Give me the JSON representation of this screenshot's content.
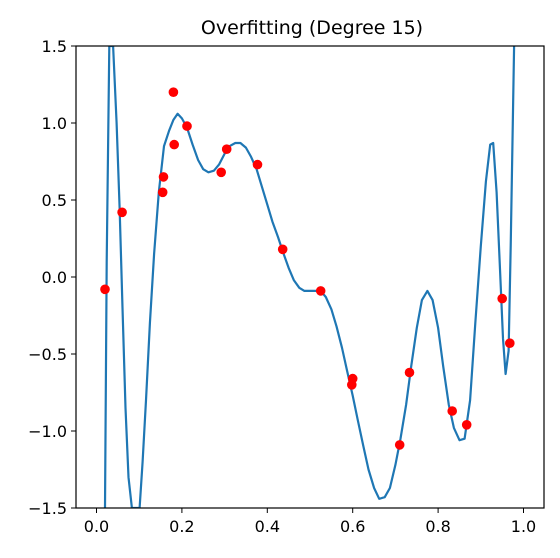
{
  "chart_data": {
    "type": "scatter",
    "title": "Overfitting (Degree 15)",
    "xlabel": "",
    "ylabel": "",
    "xlim": [
      -0.048,
      1.048
    ],
    "ylim": [
      -1.5,
      1.5
    ],
    "grid": false,
    "x_ticks": [
      0.0,
      0.2,
      0.4,
      0.6,
      0.8,
      1.0
    ],
    "x_tick_labels": [
      "0.0",
      "0.2",
      "0.4",
      "0.6",
      "0.8",
      "1.0"
    ],
    "y_ticks": [
      -1.5,
      -1.0,
      -0.5,
      0.0,
      0.5,
      1.0,
      1.5
    ],
    "y_tick_labels": [
      "−1.5",
      "−1.0",
      "−0.5",
      "0.0",
      "0.5",
      "1.0",
      "1.5"
    ],
    "colors": {
      "points": "#ff0000",
      "curve": "#1f77b4"
    },
    "points": [
      {
        "x": 0.02,
        "y": -0.08
      },
      {
        "x": 0.06,
        "y": 0.42
      },
      {
        "x": 0.155,
        "y": 0.55
      },
      {
        "x": 0.157,
        "y": 0.65
      },
      {
        "x": 0.18,
        "y": 1.2
      },
      {
        "x": 0.182,
        "y": 0.86
      },
      {
        "x": 0.212,
        "y": 0.98
      },
      {
        "x": 0.292,
        "y": 0.68
      },
      {
        "x": 0.305,
        "y": 0.83
      },
      {
        "x": 0.377,
        "y": 0.73
      },
      {
        "x": 0.436,
        "y": 0.18
      },
      {
        "x": 0.525,
        "y": -0.09
      },
      {
        "x": 0.598,
        "y": -0.7
      },
      {
        "x": 0.6,
        "y": -0.66
      },
      {
        "x": 0.71,
        "y": -1.09
      },
      {
        "x": 0.733,
        "y": -0.62
      },
      {
        "x": 0.833,
        "y": -0.87
      },
      {
        "x": 0.867,
        "y": -0.96
      },
      {
        "x": 0.95,
        "y": -0.14
      },
      {
        "x": 0.968,
        "y": -0.43
      }
    ],
    "curve": [
      [
        0.02,
        -1.5
      ],
      [
        0.024,
        0.1
      ],
      [
        0.03,
        1.5
      ],
      [
        0.039,
        1.5
      ],
      [
        0.047,
        1.0
      ],
      [
        0.054,
        0.45
      ],
      [
        0.061,
        -0.2
      ],
      [
        0.068,
        -0.85
      ],
      [
        0.075,
        -1.3
      ],
      [
        0.083,
        -1.5
      ],
      [
        0.101,
        -1.5
      ],
      [
        0.108,
        -1.2
      ],
      [
        0.116,
        -0.8
      ],
      [
        0.125,
        -0.3
      ],
      [
        0.135,
        0.15
      ],
      [
        0.146,
        0.55
      ],
      [
        0.158,
        0.85
      ],
      [
        0.17,
        0.95
      ],
      [
        0.18,
        1.02
      ],
      [
        0.19,
        1.06
      ],
      [
        0.2,
        1.03
      ],
      [
        0.212,
        0.97
      ],
      [
        0.225,
        0.86
      ],
      [
        0.238,
        0.76
      ],
      [
        0.25,
        0.7
      ],
      [
        0.262,
        0.68
      ],
      [
        0.275,
        0.69
      ],
      [
        0.287,
        0.73
      ],
      [
        0.3,
        0.8
      ],
      [
        0.312,
        0.85
      ],
      [
        0.325,
        0.87
      ],
      [
        0.337,
        0.87
      ],
      [
        0.35,
        0.84
      ],
      [
        0.362,
        0.78
      ],
      [
        0.375,
        0.7
      ],
      [
        0.387,
        0.59
      ],
      [
        0.4,
        0.47
      ],
      [
        0.412,
        0.36
      ],
      [
        0.425,
        0.26
      ],
      [
        0.437,
        0.16
      ],
      [
        0.45,
        0.06
      ],
      [
        0.462,
        -0.02
      ],
      [
        0.475,
        -0.07
      ],
      [
        0.487,
        -0.09
      ],
      [
        0.5,
        -0.09
      ],
      [
        0.512,
        -0.09
      ],
      [
        0.525,
        -0.09
      ],
      [
        0.537,
        -0.13
      ],
      [
        0.55,
        -0.21
      ],
      [
        0.562,
        -0.32
      ],
      [
        0.575,
        -0.46
      ],
      [
        0.587,
        -0.61
      ],
      [
        0.6,
        -0.77
      ],
      [
        0.612,
        -0.93
      ],
      [
        0.625,
        -1.1
      ],
      [
        0.637,
        -1.25
      ],
      [
        0.65,
        -1.37
      ],
      [
        0.662,
        -1.44
      ],
      [
        0.675,
        -1.43
      ],
      [
        0.687,
        -1.37
      ],
      [
        0.7,
        -1.22
      ],
      [
        0.712,
        -1.05
      ],
      [
        0.725,
        -0.83
      ],
      [
        0.737,
        -0.58
      ],
      [
        0.75,
        -0.33
      ],
      [
        0.762,
        -0.15
      ],
      [
        0.775,
        -0.09
      ],
      [
        0.787,
        -0.15
      ],
      [
        0.8,
        -0.33
      ],
      [
        0.812,
        -0.58
      ],
      [
        0.825,
        -0.83
      ],
      [
        0.837,
        -0.98
      ],
      [
        0.85,
        -1.06
      ],
      [
        0.862,
        -1.05
      ],
      [
        0.875,
        -0.8
      ],
      [
        0.887,
        -0.3
      ],
      [
        0.9,
        0.2
      ],
      [
        0.912,
        0.62
      ],
      [
        0.922,
        0.86
      ],
      [
        0.929,
        0.87
      ],
      [
        0.937,
        0.55
      ],
      [
        0.945,
        0.05
      ],
      [
        0.952,
        -0.4
      ],
      [
        0.958,
        -0.63
      ],
      [
        0.965,
        -0.48
      ],
      [
        0.97,
        0.2
      ],
      [
        0.975,
        1.0
      ],
      [
        0.978,
        1.5
      ]
    ]
  }
}
